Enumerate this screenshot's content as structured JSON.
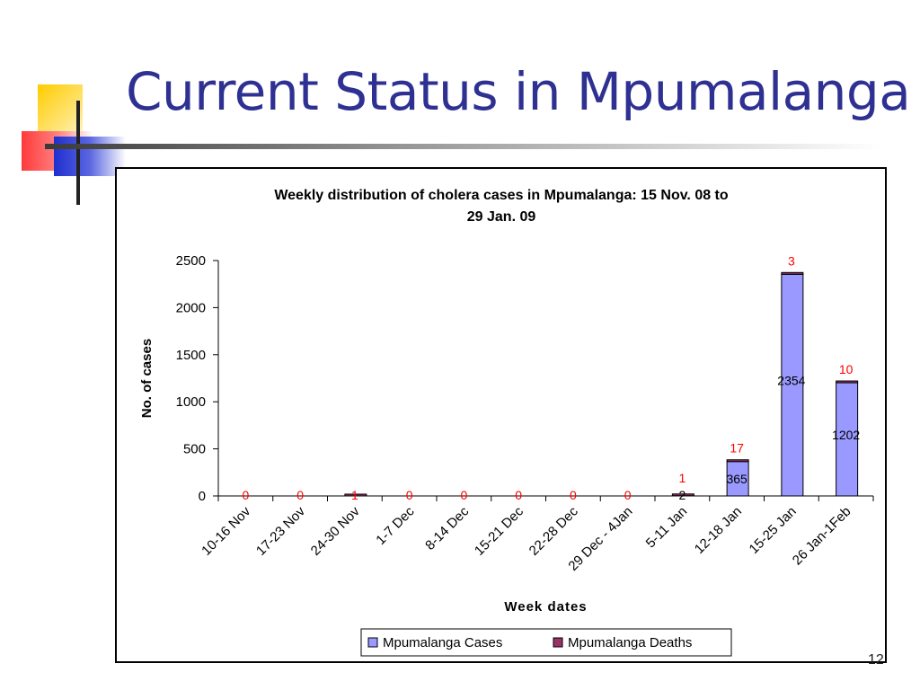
{
  "slide": {
    "title": "Current Status in Mpumalanga",
    "page_number": "12",
    "colors": {
      "title": "#2e3192",
      "accent_yellow": "#ffcc00",
      "accent_red": "#ff4444",
      "accent_blue": "#2b3ad6"
    }
  },
  "chart_data": {
    "type": "bar",
    "title": "Weekly distribution of cholera cases in Mpumalanga: 15 Nov. 08 to 29 Jan. 09",
    "title_lines": [
      "Weekly distribution of cholera cases in Mpumalanga: 15 Nov. 08 to",
      "29 Jan. 09"
    ],
    "xlabel": "Week dates",
    "ylabel": "No. of cases",
    "ylim": [
      0,
      2500
    ],
    "yticks": [
      0,
      500,
      1000,
      1500,
      2000,
      2500
    ],
    "grid": false,
    "legend_position": "bottom",
    "categories": [
      "10-16 Nov",
      "17-23 Nov",
      "24-30 Nov",
      "1-7 Dec",
      "8-14 Dec",
      "15-21 Dec",
      "22-28 Dec",
      "29 Dec - 4Jan",
      "5-11 Jan",
      "12-18 Jan",
      "15-25 Jan",
      "26 Jan-1Feb"
    ],
    "series": [
      {
        "name": "Mpumalanga Cases",
        "color": "#9999ff",
        "label_color": "#000000",
        "values": [
          0,
          0,
          0,
          0,
          0,
          0,
          0,
          0,
          2,
          365,
          2354,
          1202
        ]
      },
      {
        "name": "Mpumalanga Deaths",
        "color": "#993366",
        "label_color": "#ff0000",
        "values": [
          0,
          0,
          1,
          0,
          0,
          0,
          0,
          0,
          1,
          17,
          3,
          10
        ]
      }
    ]
  }
}
